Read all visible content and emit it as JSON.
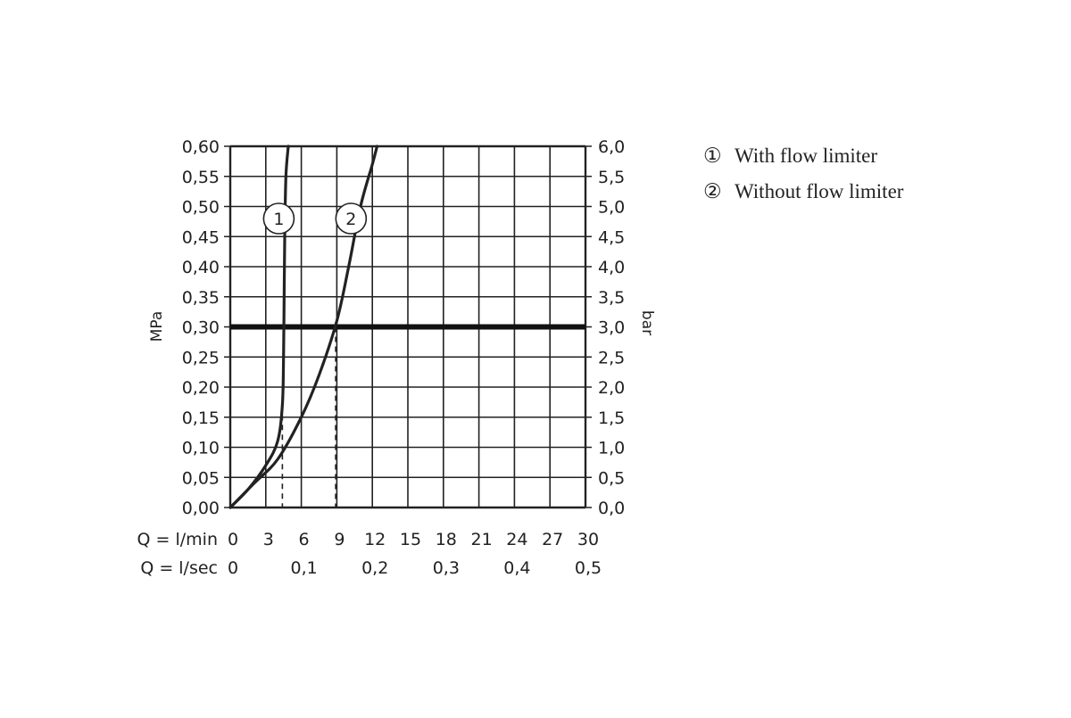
{
  "chart_data": {
    "type": "line",
    "left_axis": {
      "label": "MPa",
      "ylim": [
        0,
        0.6
      ],
      "tick_labels": [
        "0,00",
        "0,05",
        "0,10",
        "0,15",
        "0,20",
        "0,25",
        "0,30",
        "0,35",
        "0,40",
        "0,45",
        "0,50",
        "0,55",
        "0,60"
      ]
    },
    "right_axis": {
      "label": "bar",
      "ylim": [
        0,
        6
      ],
      "tick_labels": [
        "0,0",
        "0,5",
        "1,0",
        "1,5",
        "2,0",
        "2,5",
        "3,0",
        "3,5",
        "4,0",
        "4,5",
        "5,0",
        "5,5",
        "6,0"
      ]
    },
    "x_axis_lmin": {
      "label": "Q = l/min",
      "xlim": [
        0,
        30
      ],
      "tick_labels": [
        "0",
        "3",
        "6",
        "9",
        "12",
        "15",
        "18",
        "21",
        "24",
        "27",
        "30"
      ]
    },
    "x_axis_lsec": {
      "label": "Q = l/sec",
      "tick_labels": [
        "0",
        "0,1",
        "0,2",
        "0,3",
        "0,4",
        "0,5"
      ]
    },
    "grid": true,
    "reference_line_mpa": 0.3,
    "series": [
      {
        "name": "With flow limiter",
        "marker": "1",
        "x": [
          0,
          1.5,
          3,
          4,
          4.4,
          4.5,
          4.55,
          4.6,
          4.7,
          4.9
        ],
        "y": [
          0,
          0.03,
          0.07,
          0.11,
          0.17,
          0.25,
          0.35,
          0.45,
          0.55,
          0.6
        ]
      },
      {
        "name": "Without flow limiter",
        "marker": "2",
        "x": [
          0,
          2,
          4,
          6,
          7.5,
          9,
          10,
          11,
          12,
          12.4
        ],
        "y": [
          0,
          0.04,
          0.08,
          0.15,
          0.22,
          0.31,
          0.4,
          0.5,
          0.57,
          0.6
        ]
      }
    ],
    "dropdown_lines": [
      {
        "x": 4.4,
        "y": 0.17
      },
      {
        "x": 8.9,
        "y": 0.3
      }
    ]
  },
  "legend": {
    "items": [
      {
        "symbol": "①",
        "label": "With flow limiter"
      },
      {
        "symbol": "②",
        "label": "Without flow limiter"
      }
    ]
  }
}
